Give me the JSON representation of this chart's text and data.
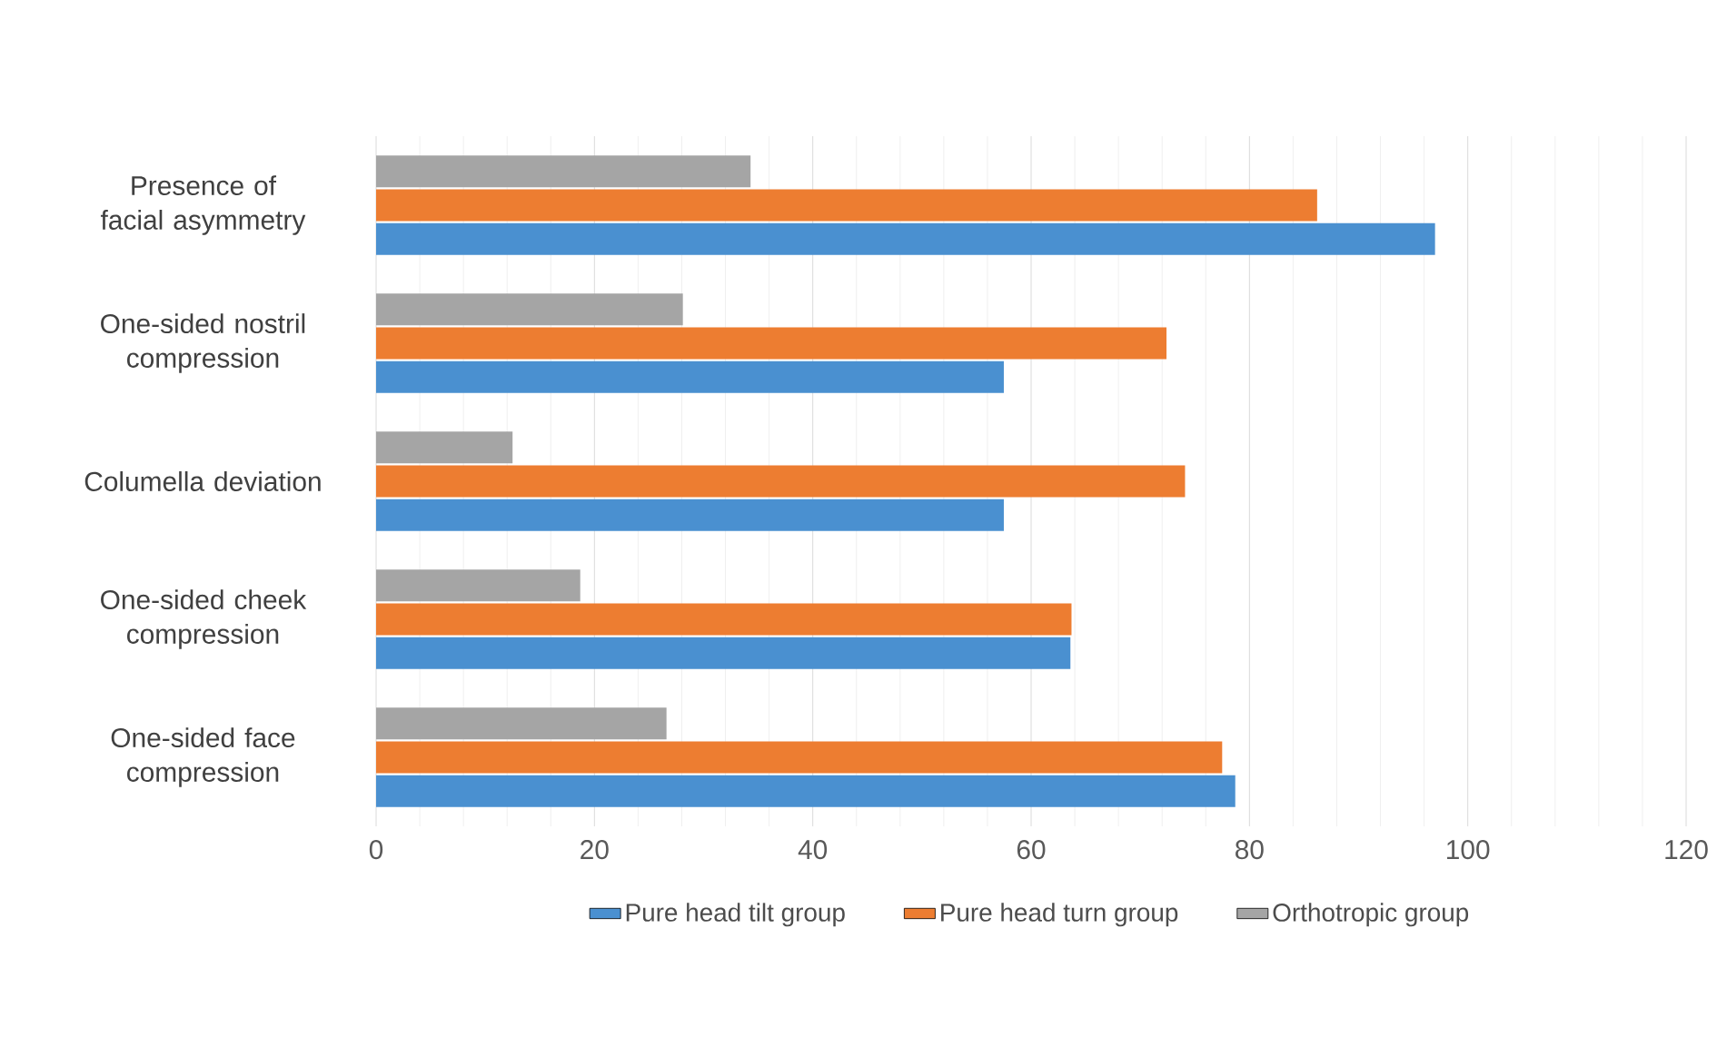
{
  "chart_data": {
    "type": "bar",
    "orientation": "horizontal",
    "categories": [
      "Presence of facial asymmetry",
      "One-sided nostril compression",
      "Columella deviation",
      "One-sided cheek compression",
      "One-sided face compression"
    ],
    "series": [
      {
        "name": "Pure head tilt group",
        "color": "#4a90d0",
        "values": [
          97.0,
          57.5,
          57.5,
          63.6,
          78.7
        ]
      },
      {
        "name": "Pure head turn group",
        "color": "#ed7d31",
        "values": [
          86.2,
          72.4,
          74.1,
          63.7,
          77.5
        ]
      },
      {
        "name": "Orthotropic group",
        "color": "#a5a5a5",
        "values": [
          34.3,
          28.1,
          12.5,
          18.7,
          26.6
        ]
      }
    ],
    "xlim": [
      0,
      120
    ],
    "xticks": [
      0,
      20,
      40,
      60,
      80,
      100,
      120
    ],
    "grid": "x",
    "legend": "bottom"
  }
}
